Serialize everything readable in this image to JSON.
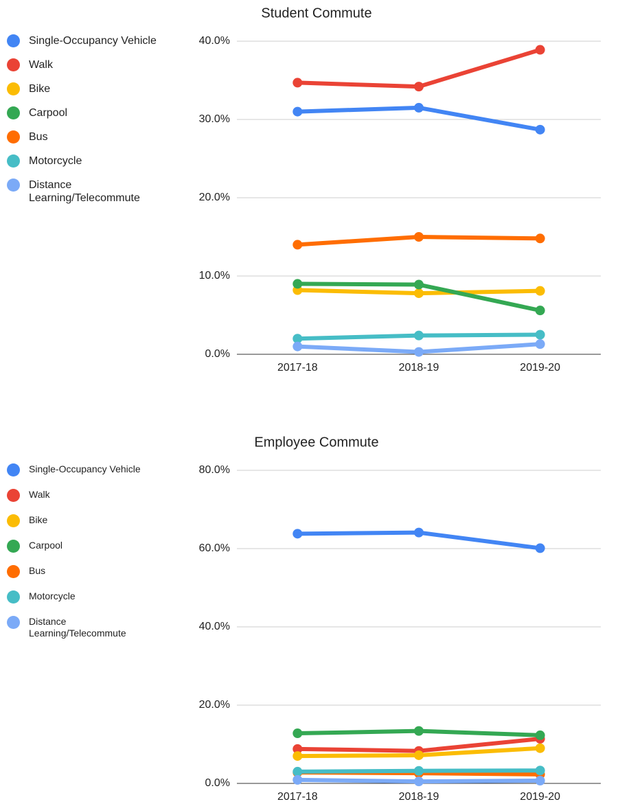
{
  "chart_data": [
    {
      "type": "line",
      "title": "Student Commute",
      "legend": "left",
      "legend_font": 16,
      "grid": true,
      "categories": [
        "2017-18",
        "2018-19",
        "2019-20"
      ],
      "ylim": [
        0,
        40
      ],
      "yticks": [
        {
          "value": 0,
          "label": "0.0%"
        },
        {
          "value": 10,
          "label": "10.0%"
        },
        {
          "value": 20,
          "label": "20.0%"
        },
        {
          "value": 30,
          "label": "30.0%"
        },
        {
          "value": 40,
          "label": "40.0%"
        }
      ],
      "series": [
        {
          "name": "Single-Occupancy Vehicle",
          "color": "#4285f4",
          "values": [
            31.0,
            31.5,
            28.7
          ]
        },
        {
          "name": "Walk",
          "color": "#ea4335",
          "values": [
            34.7,
            34.2,
            38.9
          ]
        },
        {
          "name": "Bike",
          "color": "#fbbc04",
          "values": [
            8.2,
            7.8,
            8.1
          ]
        },
        {
          "name": "Carpool",
          "color": "#34a853",
          "values": [
            9.0,
            8.9,
            5.6
          ]
        },
        {
          "name": "Bus",
          "color": "#ff6d01",
          "values": [
            14.0,
            15.0,
            14.8
          ]
        },
        {
          "name": "Motorcycle",
          "color": "#46bdc6",
          "values": [
            2.0,
            2.4,
            2.5
          ]
        },
        {
          "name": "Distance Learning/Telecommute",
          "color": "#7baaf7",
          "values": [
            1.0,
            0.3,
            1.3
          ]
        }
      ]
    },
    {
      "type": "line",
      "title": "Employee Commute",
      "legend": "left",
      "legend_font": 14,
      "grid": true,
      "categories": [
        "2017-18",
        "2018-19",
        "2019-20"
      ],
      "ylim": [
        0,
        80
      ],
      "yticks": [
        {
          "value": 0,
          "label": "0.0%"
        },
        {
          "value": 20,
          "label": "20.0%"
        },
        {
          "value": 40,
          "label": "40.0%"
        },
        {
          "value": 60,
          "label": "60.0%"
        },
        {
          "value": 80,
          "label": "80.0%"
        }
      ],
      "series": [
        {
          "name": "Single-Occupancy Vehicle",
          "color": "#4285f4",
          "values": [
            63.8,
            64.1,
            60.1
          ]
        },
        {
          "name": "Walk",
          "color": "#ea4335",
          "values": [
            8.8,
            8.3,
            11.4
          ]
        },
        {
          "name": "Bike",
          "color": "#fbbc04",
          "values": [
            7.0,
            7.2,
            9.0
          ]
        },
        {
          "name": "Carpool",
          "color": "#34a853",
          "values": [
            12.8,
            13.4,
            12.3
          ]
        },
        {
          "name": "Bus",
          "color": "#ff6d01",
          "values": [
            2.8,
            2.6,
            2.3
          ]
        },
        {
          "name": "Motorcycle",
          "color": "#46bdc6",
          "values": [
            3.0,
            3.2,
            3.3
          ]
        },
        {
          "name": "Distance Learning/Telecommute",
          "color": "#7baaf7",
          "values": [
            0.9,
            0.5,
            0.7
          ]
        }
      ]
    }
  ]
}
